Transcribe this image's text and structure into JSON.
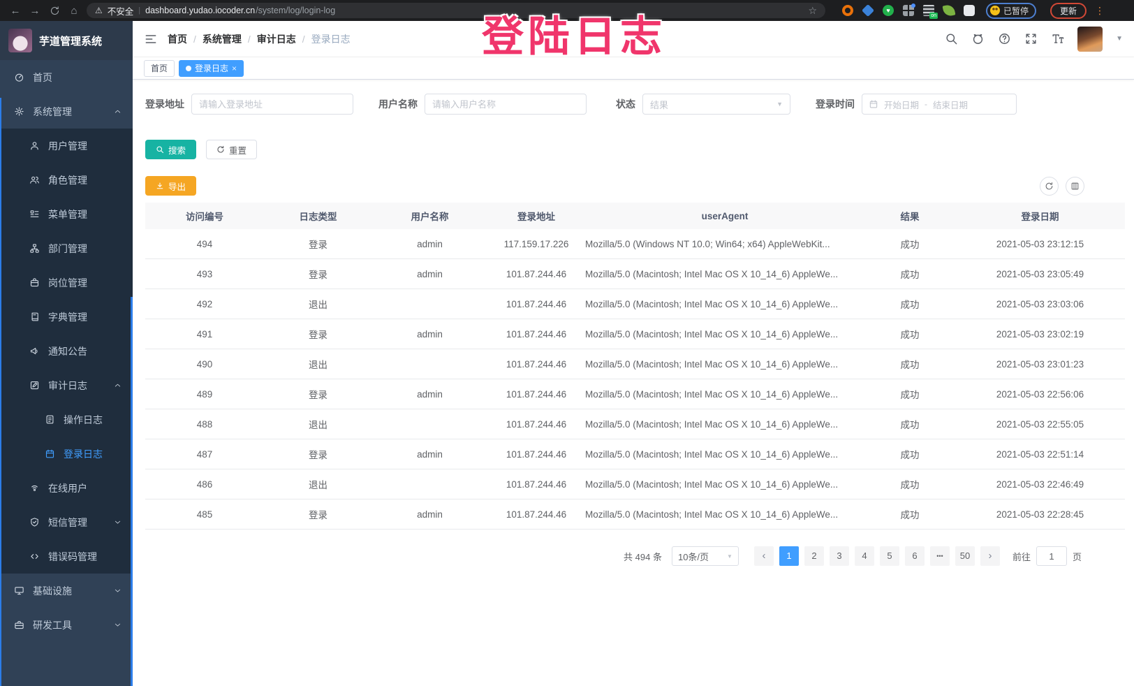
{
  "browser": {
    "security_label": "不安全",
    "url_host": "dashboard.yudao.iocoder.cn",
    "url_path": "/system/log/login-log",
    "paused_badge": "已暂停",
    "update_button": "更新",
    "extensions": [
      {
        "name": "orange-ring-extension-icon",
        "shape": "ring",
        "color": "#e8710a"
      },
      {
        "name": "blue-gem-extension-icon",
        "shape": "diamond",
        "color": "#3b82d8"
      },
      {
        "name": "green-heart-extension-icon",
        "shape": "circle",
        "color": "#22b14c",
        "glyph": "♥"
      },
      {
        "name": "grid-extension-icon",
        "shape": "grid",
        "color": "#9aa0a6",
        "dot": true
      },
      {
        "name": "list-extension-icon",
        "shape": "list",
        "color": "#3c4043",
        "badge": "on"
      },
      {
        "name": "leaf-extension-icon",
        "shape": "leaf",
        "color": "#7cb342"
      },
      {
        "name": "puzzle-extension-icon",
        "shape": "puzzle",
        "color": "#e8eaed"
      }
    ]
  },
  "watermark": {
    "text": "登陆日志",
    "color": "#f0356b"
  },
  "sidebar": {
    "logo_title": "芋道管理系统",
    "menu": [
      {
        "label": "首页",
        "icon": "dashboard-icon",
        "level": 1
      },
      {
        "label": "系统管理",
        "icon": "gear-icon",
        "level": 1,
        "arrow": "up"
      },
      {
        "label": "用户管理",
        "icon": "user-icon",
        "level": 2
      },
      {
        "label": "角色管理",
        "icon": "roles-icon",
        "level": 2
      },
      {
        "label": "菜单管理",
        "icon": "menu-list-icon",
        "level": 2
      },
      {
        "label": "部门管理",
        "icon": "org-tree-icon",
        "level": 2
      },
      {
        "label": "岗位管理",
        "icon": "post-badge-icon",
        "level": 2
      },
      {
        "label": "字典管理",
        "icon": "dictionary-icon",
        "level": 2
      },
      {
        "label": "通知公告",
        "icon": "announcement-icon",
        "level": 2
      },
      {
        "label": "审计日志",
        "icon": "audit-log-icon",
        "level": 2,
        "arrow": "up"
      },
      {
        "label": "操作日志",
        "icon": "operation-log-icon",
        "level": 3
      },
      {
        "label": "登录日志",
        "icon": "login-log-icon",
        "level": 3,
        "active": true
      },
      {
        "label": "在线用户",
        "icon": "online-users-icon",
        "level": 2
      },
      {
        "label": "短信管理",
        "icon": "sms-shield-icon",
        "level": 2,
        "arrow": "down"
      },
      {
        "label": "错误码管理",
        "icon": "error-code-icon",
        "level": 2
      },
      {
        "label": "基础设施",
        "icon": "infrastructure-icon",
        "level": 1,
        "arrow": "down"
      },
      {
        "label": "研发工具",
        "icon": "devtools-icon",
        "level": 1,
        "arrow": "down"
      }
    ]
  },
  "breadcrumb": [
    "首页",
    "系统管理",
    "审计日志",
    "登录日志"
  ],
  "tabs": [
    {
      "label": "首页",
      "active": false
    },
    {
      "label": "登录日志",
      "active": true,
      "closable": true
    }
  ],
  "filters": {
    "address_label": "登录地址",
    "address_placeholder": "请输入登录地址",
    "username_label": "用户名称",
    "username_placeholder": "请输入用户名称",
    "status_label": "状态",
    "status_placeholder": "结果",
    "time_label": "登录时间",
    "date_start_placeholder": "开始日期",
    "date_separator": "-",
    "date_end_placeholder": "结束日期"
  },
  "actions": {
    "search": "搜索",
    "reset": "重置",
    "export": "导出"
  },
  "table": {
    "headers": [
      "访问编号",
      "日志类型",
      "用户名称",
      "登录地址",
      "userAgent",
      "结果",
      "登录日期"
    ],
    "rows": [
      [
        "494",
        "登录",
        "admin",
        "117.159.17.226",
        "Mozilla/5.0 (Windows NT 10.0; Win64; x64) AppleWebKit...",
        "成功",
        "2021-05-03 23:12:15"
      ],
      [
        "493",
        "登录",
        "admin",
        "101.87.244.46",
        "Mozilla/5.0 (Macintosh; Intel Mac OS X 10_14_6) AppleWe...",
        "成功",
        "2021-05-03 23:05:49"
      ],
      [
        "492",
        "退出",
        "",
        "101.87.244.46",
        "Mozilla/5.0 (Macintosh; Intel Mac OS X 10_14_6) AppleWe...",
        "成功",
        "2021-05-03 23:03:06"
      ],
      [
        "491",
        "登录",
        "admin",
        "101.87.244.46",
        "Mozilla/5.0 (Macintosh; Intel Mac OS X 10_14_6) AppleWe...",
        "成功",
        "2021-05-03 23:02:19"
      ],
      [
        "490",
        "退出",
        "",
        "101.87.244.46",
        "Mozilla/5.0 (Macintosh; Intel Mac OS X 10_14_6) AppleWe...",
        "成功",
        "2021-05-03 23:01:23"
      ],
      [
        "489",
        "登录",
        "admin",
        "101.87.244.46",
        "Mozilla/5.0 (Macintosh; Intel Mac OS X 10_14_6) AppleWe...",
        "成功",
        "2021-05-03 22:56:06"
      ],
      [
        "488",
        "退出",
        "",
        "101.87.244.46",
        "Mozilla/5.0 (Macintosh; Intel Mac OS X 10_14_6) AppleWe...",
        "成功",
        "2021-05-03 22:55:05"
      ],
      [
        "487",
        "登录",
        "admin",
        "101.87.244.46",
        "Mozilla/5.0 (Macintosh; Intel Mac OS X 10_14_6) AppleWe...",
        "成功",
        "2021-05-03 22:51:14"
      ],
      [
        "486",
        "退出",
        "",
        "101.87.244.46",
        "Mozilla/5.0 (Macintosh; Intel Mac OS X 10_14_6) AppleWe...",
        "成功",
        "2021-05-03 22:46:49"
      ],
      [
        "485",
        "登录",
        "admin",
        "101.87.244.46",
        "Mozilla/5.0 (Macintosh; Intel Mac OS X 10_14_6) AppleWe...",
        "成功",
        "2021-05-03 22:28:45"
      ]
    ]
  },
  "pagination": {
    "total": "共 494 条",
    "page_size": "10条/页",
    "pages": [
      "1",
      "2",
      "3",
      "4",
      "5",
      "6",
      "•••",
      "50"
    ],
    "active_page": "1",
    "goto_prefix": "前往",
    "goto_value": "1",
    "goto_suffix": "页"
  },
  "colors": {
    "accent": "#409eff",
    "search_button": "#17b3a3",
    "export_button": "#f5a623",
    "sidebar_bg": "#304156",
    "submenu_bg": "#1f2d3d",
    "watermark": "#f0356b"
  }
}
